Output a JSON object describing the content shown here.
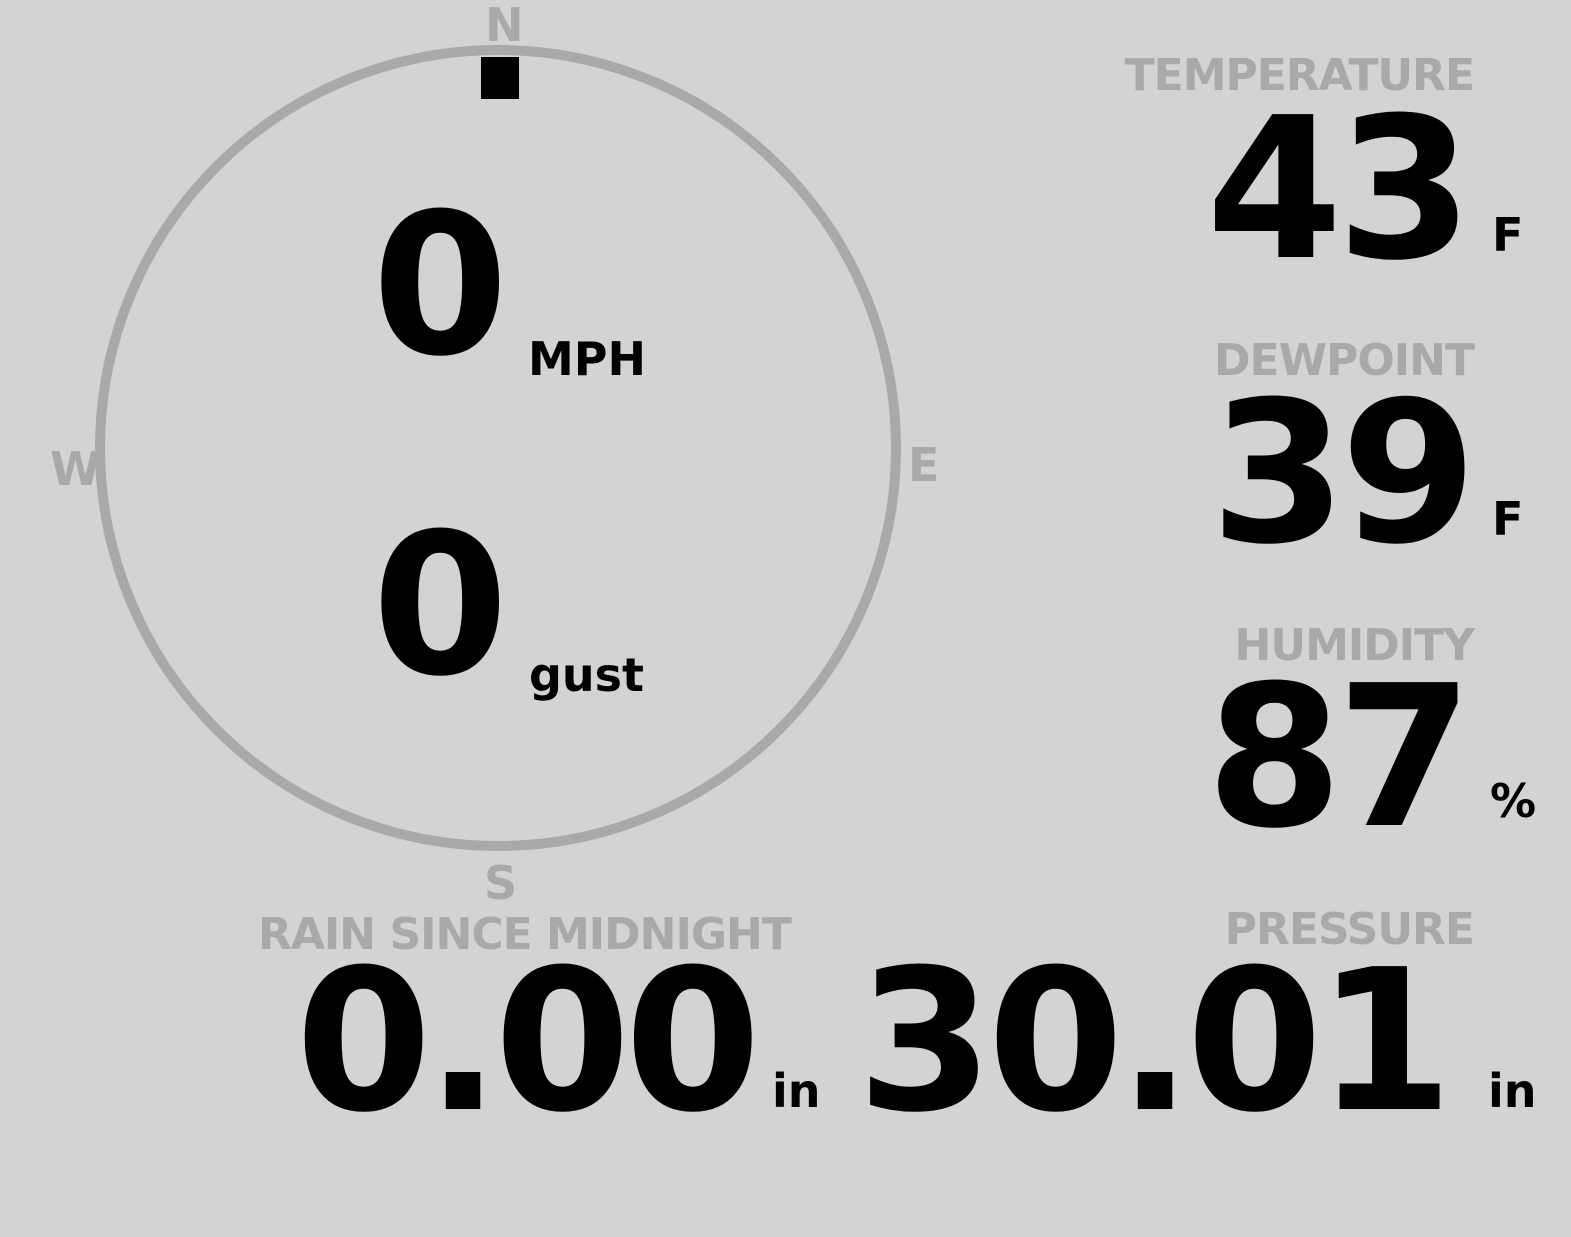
{
  "colors": {
    "background": "#d3d3d3",
    "label": "#a9a9a9",
    "value": "#000000"
  },
  "wind": {
    "compass": {
      "north": "N",
      "south": "S",
      "east": "E",
      "west": "W"
    },
    "direction_deg": 0,
    "speed": "0",
    "speed_unit": "MPH",
    "gust": "0",
    "gust_unit": "gust"
  },
  "temperature": {
    "label": "TEMPERATURE",
    "value": "43",
    "unit": "F"
  },
  "dewpoint": {
    "label": "DEWPOINT",
    "value": "39",
    "unit": "F"
  },
  "humidity": {
    "label": "HUMIDITY",
    "value": "87",
    "unit": "%"
  },
  "rain": {
    "label": "RAIN SINCE MIDNIGHT",
    "value": "0.00",
    "unit": "in"
  },
  "pressure": {
    "label": "PRESSURE",
    "value": "30.01",
    "unit": "in"
  }
}
